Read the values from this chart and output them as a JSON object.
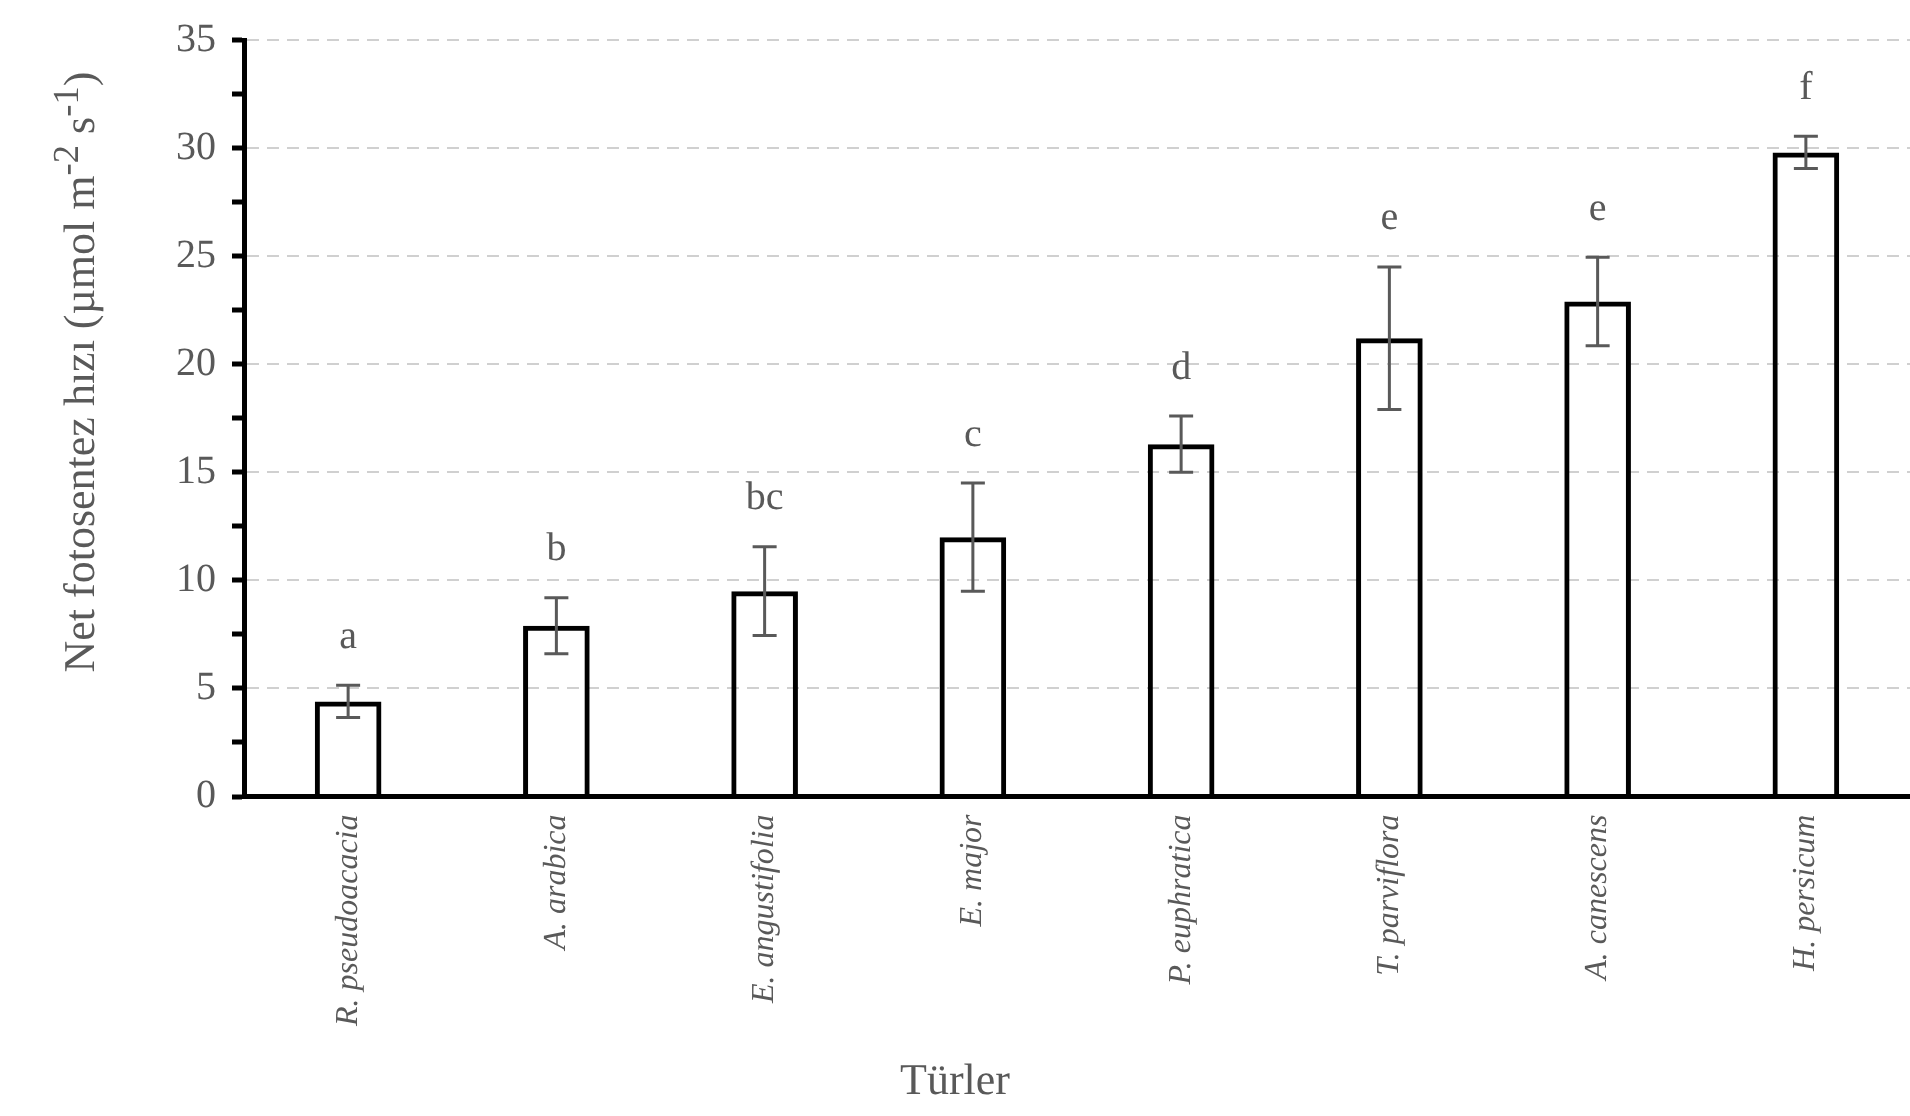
{
  "chart_data": {
    "type": "bar",
    "xlabel": "Türler",
    "ylabel": "Net fotosentez hızı (µmol m$^{-2}$ s$^{-1}$)",
    "categories": [
      "R. pseudoacacia",
      "A. arabica",
      "E. angustifolia",
      "E. major",
      "P. euphratica",
      "T. parviflora",
      "A. canescens",
      "H. persicum"
    ],
    "values": [
      4.4,
      7.9,
      9.5,
      12.0,
      16.3,
      21.2,
      22.9,
      29.8
    ],
    "errors": [
      0.75,
      1.3,
      2.05,
      2.5,
      1.3,
      3.3,
      2.05,
      0.75
    ],
    "color": "#000000",
    "ylim": [
      0,
      35
    ],
    "yticks": [
      0,
      {
        "value": 2.5,
        "label": null
      },
      5,
      {
        "value": 7.5,
        "label": null
      },
      10,
      {
        "value": 12.5,
        "label": null
      },
      15,
      {
        "value": 17.5,
        "label": null
      },
      20,
      {
        "value": 22.5,
        "label": null
      },
      25,
      {
        "value": 27.5,
        "label": null
      },
      30,
      {
        "value": 32.5,
        "label": null
      },
      35
    ],
    "grid": "y",
    "legend": false,
    "annotations": [
      "a",
      "b",
      "bc",
      "c",
      "d",
      "e",
      "e",
      "f"
    ]
  }
}
